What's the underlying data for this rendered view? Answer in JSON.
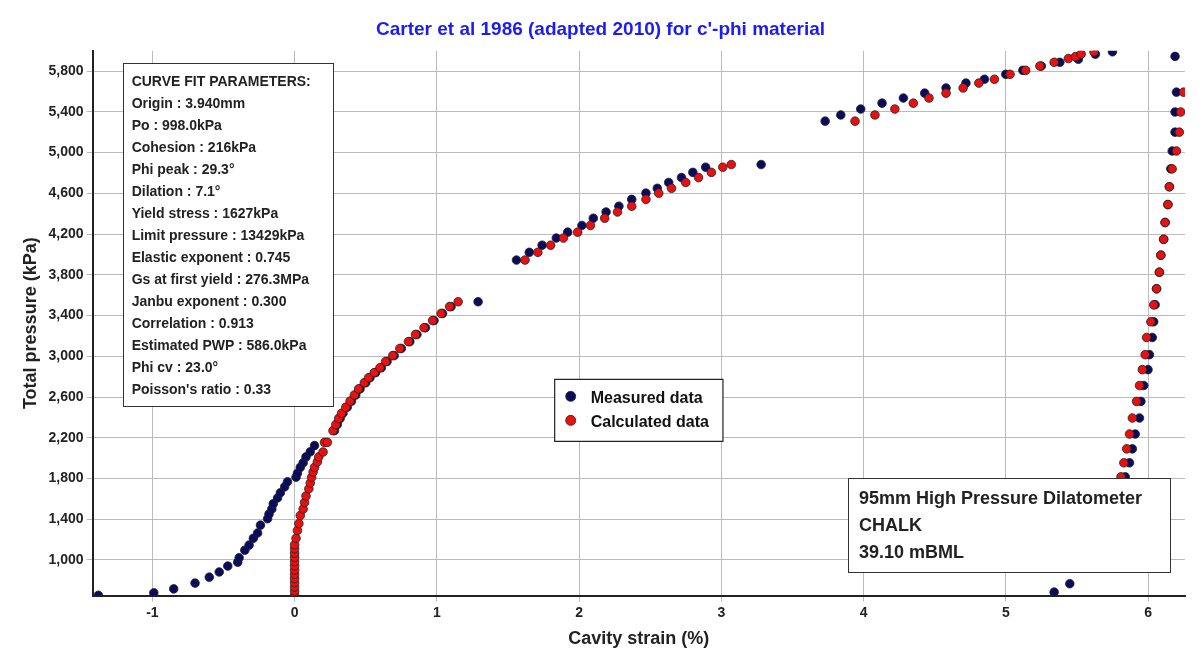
{
  "chart_data": {
    "type": "scatter",
    "title": "Carter et al 1986 (adapted 2010) for c'-phi material",
    "xlabel": "Cavity strain (%)",
    "ylabel": "Total pressure (kPa)",
    "xlim": [
      -1.42,
      6.26
    ],
    "ylim": [
      650,
      6000
    ],
    "xticks": [
      -1,
      0,
      1,
      2,
      3,
      4,
      5,
      6
    ],
    "yticks": [
      {
        "value": 1000,
        "label": "1,000"
      },
      {
        "value": 1400,
        "label": "1,400"
      },
      {
        "value": 1800,
        "label": "1,800"
      },
      {
        "value": 2200,
        "label": "2,200"
      },
      {
        "value": 2600,
        "label": "2,600"
      },
      {
        "value": 3000,
        "label": "3,000"
      },
      {
        "value": 3400,
        "label": "3,400"
      },
      {
        "value": 3800,
        "label": "3,800"
      },
      {
        "value": 4200,
        "label": "4,200"
      },
      {
        "value": 4600,
        "label": "4,600"
      },
      {
        "value": 5000,
        "label": "5,000"
      },
      {
        "value": 5400,
        "label": "5,400"
      },
      {
        "value": 5800,
        "label": "5,800"
      }
    ],
    "grid": true,
    "legend": "center",
    "marker": "circle",
    "series": [
      {
        "name": "Measured data",
        "color": "#0b0b5e",
        "x": [
          -1.38,
          -0.99,
          -0.85,
          -0.7,
          -0.6,
          -0.53,
          -0.47,
          -0.4,
          -0.39,
          -0.35,
          -0.32,
          -0.29,
          -0.26,
          -0.24,
          -0.19,
          -0.18,
          -0.16,
          -0.15,
          -0.12,
          -0.1,
          -0.07,
          -0.05,
          0.01,
          0.02,
          0.04,
          0.06,
          0.08,
          0.11,
          0.14,
          0.28,
          0.3,
          0.32,
          0.34,
          0.37,
          0.4,
          0.43,
          0.46,
          0.5,
          0.53,
          0.57,
          0.61,
          0.65,
          0.7,
          0.75,
          0.81,
          0.86,
          0.92,
          0.98,
          1.04,
          1.1,
          1.29,
          1.56,
          1.65,
          1.74,
          1.84,
          1.92,
          2.02,
          2.1,
          2.19,
          2.28,
          2.37,
          2.47,
          2.55,
          2.63,
          2.72,
          2.8,
          2.89,
          3.28,
          3.73,
          3.84,
          3.98,
          4.13,
          4.28,
          4.43,
          4.58,
          4.72,
          4.85,
          5.0,
          5.12,
          5.25,
          5.38,
          5.51,
          5.63,
          5.75,
          6.19,
          6.2,
          6.19,
          6.19,
          6.17,
          6.16,
          6.15,
          6.14,
          6.12,
          6.11,
          6.09,
          6.08,
          6.06,
          6.05,
          6.04,
          6.03,
          6.01,
          6.0,
          5.97,
          5.95,
          5.94,
          5.91,
          5.89,
          5.87,
          5.84,
          5.45,
          5.34
        ],
        "values": [
          653,
          677,
          716,
          773,
          831,
          882,
          940,
          978,
          1022,
          1096,
          1146,
          1213,
          1265,
          1342,
          1405,
          1450,
          1500,
          1552,
          1609,
          1660,
          1718,
          1768,
          1813,
          1852,
          1909,
          1954,
          2012,
          2062,
          2123,
          2270,
          2330,
          2390,
          2440,
          2500,
          2560,
          2620,
          2680,
          2740,
          2790,
          2840,
          2888,
          2949,
          3007,
          3077,
          3144,
          3214,
          3281,
          3351,
          3421,
          3488,
          3536,
          3945,
          4021,
          4091,
          4161,
          4219,
          4285,
          4356,
          4417,
          4474,
          4541,
          4602,
          4650,
          4707,
          4755,
          4806,
          4857,
          4883,
          5309,
          5370,
          5428,
          5486,
          5536,
          5584,
          5635,
          5683,
          5721,
          5769,
          5808,
          5850,
          5887,
          5917,
          5967,
          5990,
          5945,
          5594,
          5399,
          5201,
          5016,
          4841,
          4665,
          4490,
          4314,
          4149,
          3993,
          3826,
          3663,
          3507,
          3339,
          3185,
          3016,
          2869,
          2713,
          2557,
          2394,
          2237,
          2091,
          1954,
          1816,
          767,
          684
        ]
      },
      {
        "name": "Calculated data",
        "color": "#e81010",
        "x": [
          0,
          0,
          0,
          0,
          0,
          0,
          0,
          0,
          0,
          0,
          0,
          0,
          0,
          0.01,
          0.02,
          0.03,
          0.04,
          0.06,
          0.07,
          0.08,
          0.1,
          0.11,
          0.12,
          0.13,
          0.14,
          0.16,
          0.17,
          0.2,
          0.21,
          0.23,
          0.27,
          0.29,
          0.31,
          0.33,
          0.36,
          0.39,
          0.42,
          0.45,
          0.49,
          0.52,
          0.56,
          0.6,
          0.64,
          0.69,
          0.74,
          0.8,
          0.85,
          0.91,
          0.97,
          1.03,
          1.09,
          1.15,
          1.62,
          1.71,
          1.8,
          1.89,
          1.99,
          2.08,
          2.18,
          2.27,
          2.37,
          2.47,
          2.56,
          2.65,
          2.75,
          2.84,
          2.93,
          3.01,
          3.07,
          3.94,
          4.08,
          4.22,
          4.35,
          4.46,
          4.58,
          4.7,
          4.81,
          4.92,
          5.03,
          5.14,
          5.24,
          5.34,
          5.44,
          5.49,
          5.53,
          5.62,
          6.25,
          6.23,
          6.22,
          6.2,
          6.17,
          6.15,
          6.14,
          6.12,
          6.11,
          6.09,
          6.08,
          6.06,
          6.04,
          6.02,
          5.99,
          5.98,
          5.96,
          5.94,
          5.92,
          5.89,
          5.87,
          5.85,
          5.83,
          5.81
        ],
        "values": [
          652,
          694,
          735,
          777,
          818,
          860,
          901,
          943,
          984,
          1026,
          1067,
          1109,
          1150,
          1213,
          1290,
          1357,
          1437,
          1500,
          1565,
          1628,
          1699,
          1756,
          1813,
          1864,
          1909,
          1963,
          2012,
          2060,
          2155,
          2155,
          2270,
          2330,
          2390,
          2440,
          2500,
          2560,
          2620,
          2680,
          2740,
          2790,
          2840,
          2888,
          2949,
          3007,
          3077,
          3144,
          3214,
          3281,
          3351,
          3421,
          3488,
          3536,
          3945,
          4021,
          4091,
          4161,
          4219,
          4285,
          4356,
          4417,
          4474,
          4541,
          4602,
          4650,
          4707,
          4755,
          4806,
          4857,
          4883,
          5309,
          5370,
          5428,
          5486,
          5536,
          5584,
          5635,
          5683,
          5721,
          5769,
          5808,
          5850,
          5887,
          5924,
          5943,
          5967,
          5990,
          5594,
          5399,
          5201,
          5016,
          4841,
          4665,
          4490,
          4314,
          4149,
          3993,
          3826,
          3663,
          3505,
          3339,
          3185,
          3016,
          2869,
          2713,
          2557,
          2394,
          2237,
          2091,
          1954,
          1816
        ]
      }
    ],
    "annotations": [
      "CURVE FIT PARAMETERS:\nOrigin : 3.940mm\nPo : 998.0kPa\nCohesion : 216kPa\nPhi peak : 29.3°\nDilation : 7.1°\nYield stress : 1627kPa\nLimit pressure : 13429kPa\nElastic exponent : 0.745\nGs at first yield : 276.3MPa\nJanbu exponent : 0.300\nCorrelation : 0.913\nEstimated PWP : 586.0kPa\nPhi cv : 23.0°\nPoisson's ratio : 0.33",
      "95mm High Pressure Dilatometer\nCHALK\n39.10 mBML"
    ]
  }
}
